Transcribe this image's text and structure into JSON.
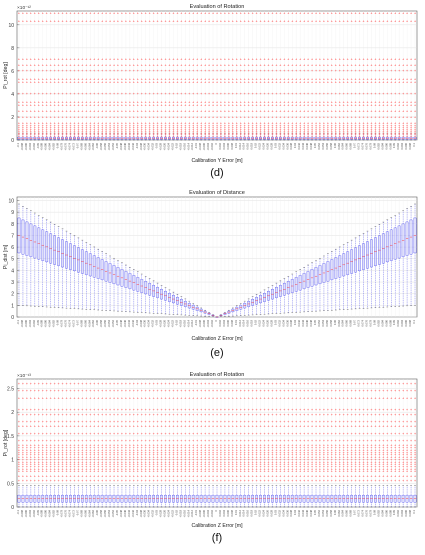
{
  "panels": [
    {
      "caption": "(d)"
    },
    {
      "caption": "(e)"
    },
    {
      "caption": "(f)"
    }
  ],
  "colors": {
    "box_line": "#3a3af0",
    "box_fill": "#c8c8f8",
    "outlier": "#ff2a2a",
    "axis": "#5a5a5a",
    "grid": "#d9d9d9",
    "median": "#ff0000"
  },
  "chart_data": [
    {
      "type": "box",
      "title": "Evaluation of Rotation",
      "xlabel": "Calibration Y Error [m]",
      "ylabel": "Pi_rot [deg]",
      "ylim": [
        0,
        11.2
      ],
      "yticks": [
        0,
        2,
        4,
        6,
        8,
        10
      ],
      "scale_exponent": "×10⁻¹²",
      "box_count": 101,
      "x_range": [
        -0.1,
        0.1
      ],
      "box_low": 0.05,
      "box_high": 0.25,
      "whisker_high": 0.6,
      "outlier_levels": [
        0.3,
        0.45,
        0.6,
        0.75,
        0.9,
        1.05,
        1.25,
        1.45,
        2.0,
        2.5,
        3.0,
        3.3,
        4.0,
        5.0,
        5.3,
        6.0,
        6.5,
        7.0,
        10.3,
        11.0
      ],
      "grid": true
    },
    {
      "type": "box",
      "title": "Evaluation of Distance",
      "xlabel": "Calibration Z Error [m]",
      "ylabel": "Pi_dist [m]",
      "ylim": [
        0,
        10.3
      ],
      "yticks": [
        0,
        1,
        2,
        3,
        4,
        5,
        6,
        7,
        8,
        9,
        10
      ],
      "box_count": 101,
      "x_range": [
        -0.1,
        0.1
      ],
      "edge_box": {
        "median": 7.0,
        "q1": 5.5,
        "q3": 8.5,
        "whisker_low": 1.0,
        "whisker_high": 9.7
      },
      "center_value": 0,
      "grid": true
    },
    {
      "type": "box",
      "title": "Evaluation of Rotation",
      "xlabel": "Calibration Z Error [m]",
      "ylabel": "Pi_rot [deg]",
      "ylim": [
        0,
        2.7
      ],
      "yticks": [
        0,
        0.5,
        1,
        1.5,
        2,
        2.5
      ],
      "scale_exponent": "×10⁻¹³",
      "box_count": 101,
      "x_range": [
        -0.1,
        0.1
      ],
      "box_low": 0.1,
      "box_high": 0.25,
      "whisker_high": 0.45,
      "outlier_levels": [
        0.55,
        0.65,
        0.75,
        0.8,
        0.85,
        0.9,
        0.95,
        1.0,
        1.05,
        1.1,
        1.15,
        1.2,
        1.25,
        1.3,
        1.4,
        1.55,
        1.7,
        1.8,
        1.95,
        2.05,
        2.3,
        2.45,
        2.6
      ],
      "grid": true
    }
  ]
}
